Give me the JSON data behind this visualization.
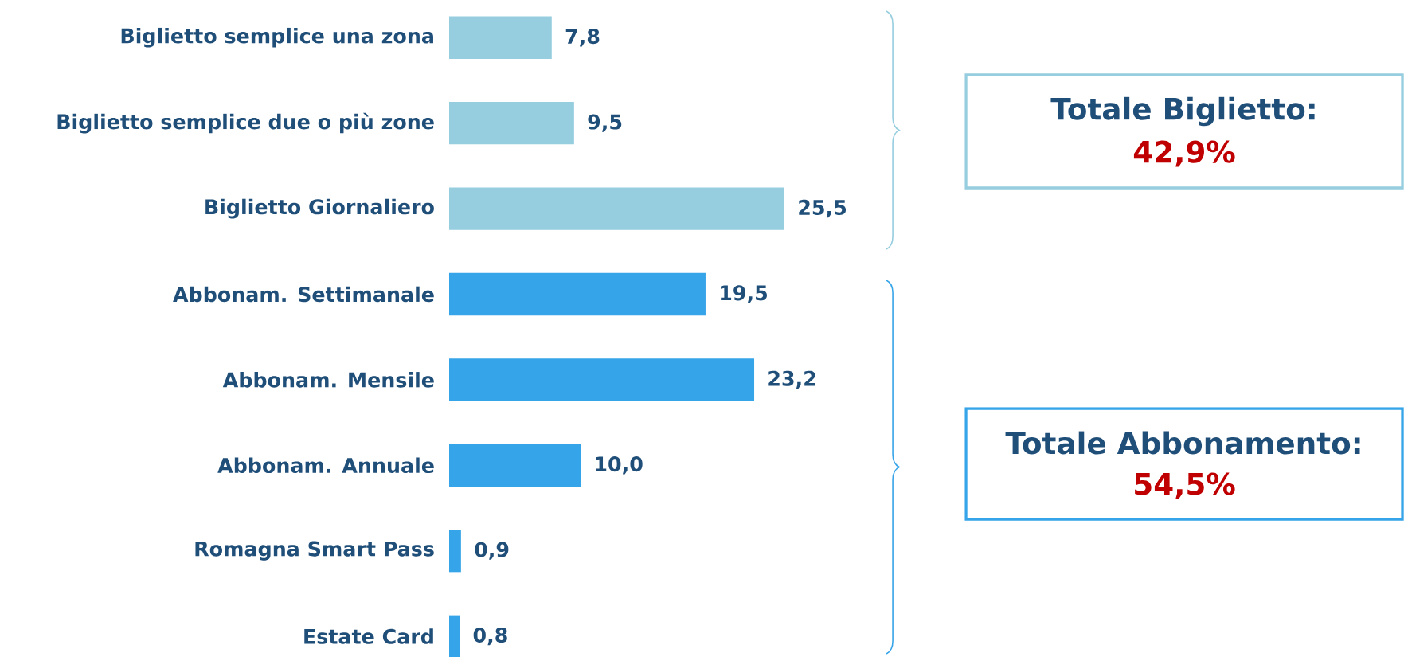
{
  "chart_data": {
    "type": "bar",
    "orientation": "horizontal",
    "categories": [
      "Biglietto semplice una zona",
      "Biglietto semplice due o più zone",
      "Biglietto Giornaliero",
      "Abbonam. Settimanale",
      "Abbonam. Mensile",
      "Abbonam. Annuale",
      "Romagna Smart Pass",
      "Estate Card"
    ],
    "values": [
      7.8,
      9.5,
      25.5,
      19.5,
      23.2,
      10.0,
      0.9,
      0.8
    ],
    "value_labels": [
      "7,8",
      "9,5",
      "25,5",
      "19,5",
      "23,2",
      "10,0",
      "0,9",
      "0,8"
    ],
    "colors": [
      "#96cddf",
      "#96cddf",
      "#96cddf",
      "#36a4e8",
      "#36a4e8",
      "#36a4e8",
      "#36a4e8",
      "#36a4e8"
    ],
    "annotations": [
      "Totale Biglietto:",
      "42,9%",
      "Totale Abbonamento:",
      "54,5%"
    ]
  }
}
